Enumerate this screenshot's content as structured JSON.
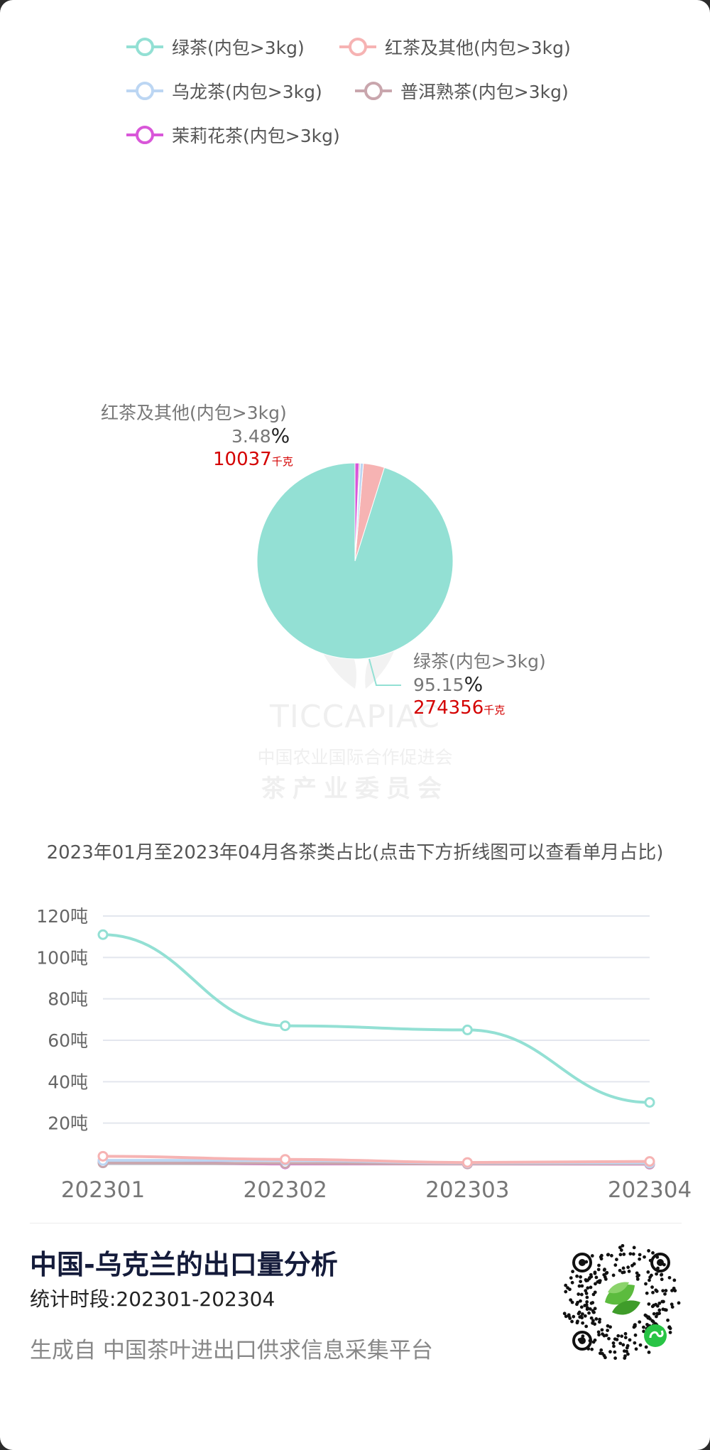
{
  "legend": [
    {
      "label": "绿茶(内包>3kg)",
      "color": "#93e0d4"
    },
    {
      "label": "红茶及其他(内包>3kg)",
      "color": "#f6b3b3"
    },
    {
      "label": "乌龙茶(内包>3kg)",
      "color": "#bcd6f3"
    },
    {
      "label": "普洱熟茶(内包>3kg)",
      "color": "#c9a6ad"
    },
    {
      "label": "茉莉花茶(内包>3kg)",
      "color": "#d957d9"
    }
  ],
  "pie_labels": {
    "green": {
      "name": "绿茶(内包>3kg)",
      "pct": "95.15",
      "pct_sign": "%",
      "kg": "274356",
      "kg_unit": "千克"
    },
    "black": {
      "name": "红茶及其他(内包>3kg)",
      "pct": "3.48",
      "pct_sign": "%",
      "kg": "10037",
      "kg_unit": "千克"
    }
  },
  "watermark": {
    "brand": "TICCAPIAC",
    "line1": "中国农业国际合作促进会",
    "line2": "茶产业委员会"
  },
  "line_chart_title": "2023年01月至2023年04月各茶类占比(点击下方折线图可以查看单月占比)",
  "footer": {
    "title": "中国-乌克兰的出口量分析",
    "period": "统计时段:202301-202304",
    "source": "生成自  中国茶叶进出口供求信息采集平台"
  },
  "chart_data": [
    {
      "type": "pie",
      "slices": [
        {
          "name": "绿茶(内包>3kg)",
          "percent": 95.15,
          "value_kg": 274356,
          "color": "#93e0d4"
        },
        {
          "name": "红茶及其他(内包>3kg)",
          "percent": 3.48,
          "value_kg": 10037,
          "color": "#f6b3b3"
        },
        {
          "name": "乌龙茶(内包>3kg)",
          "percent": 0.5,
          "color": "#bcd6f3"
        },
        {
          "name": "普洱熟茶(内包>3kg)",
          "percent": 0.2,
          "color": "#c9a6ad"
        },
        {
          "name": "茉莉花茶(内包>3kg)",
          "percent": 0.67,
          "color": "#d957d9"
        }
      ]
    },
    {
      "type": "line",
      "categories": [
        "202301",
        "202302",
        "202303",
        "202304"
      ],
      "y_ticks": [
        "20吨",
        "40吨",
        "60吨",
        "80吨",
        "100吨",
        "120吨"
      ],
      "ylim": [
        0,
        120
      ],
      "grid": true,
      "series": [
        {
          "name": "绿茶(内包>3kg)",
          "color": "#93e0d4",
          "values": [
            111,
            67,
            65,
            30
          ]
        },
        {
          "name": "红茶及其他(内包>3kg)",
          "color": "#f6b3b3",
          "values": [
            4,
            2.5,
            1,
            1.5
          ]
        },
        {
          "name": "乌龙茶(内包>3kg)",
          "color": "#bcd6f3",
          "values": [
            2,
            2,
            0.8,
            0.8
          ]
        },
        {
          "name": "普洱熟茶(内包>3kg)",
          "color": "#c9a6ad",
          "values": [
            0.8,
            0.5,
            0.3,
            0.3
          ]
        },
        {
          "name": "茉莉花茶(内包>3kg)",
          "color": "#d957d9",
          "values": [
            1.5,
            0.3,
            0.3,
            0.2
          ]
        }
      ]
    }
  ]
}
